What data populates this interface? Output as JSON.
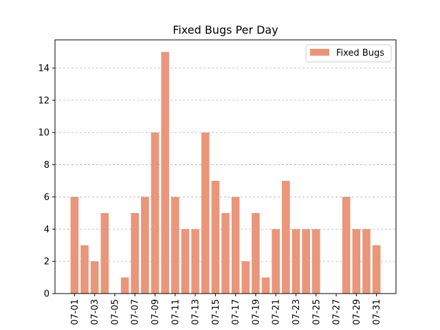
{
  "chart_data": {
    "type": "bar",
    "title": "Fixed Bugs Per Day",
    "xlabel": "",
    "ylabel": "",
    "categories": [
      "07-01",
      "07-02",
      "07-03",
      "07-04",
      "07-05",
      "07-06",
      "07-07",
      "07-08",
      "07-09",
      "07-10",
      "07-11",
      "07-12",
      "07-13",
      "07-14",
      "07-15",
      "07-16",
      "07-17",
      "07-18",
      "07-19",
      "07-20",
      "07-21",
      "07-22",
      "07-23",
      "07-24",
      "07-25",
      "07-26",
      "07-27",
      "07-28",
      "07-29",
      "07-30",
      "07-31"
    ],
    "x_tick_labels": [
      "07-01",
      "07-03",
      "07-05",
      "07-07",
      "07-09",
      "07-11",
      "07-13",
      "07-15",
      "07-17",
      "07-19",
      "07-21",
      "07-23",
      "07-25",
      "07-27",
      "07-29",
      "07-31"
    ],
    "series": [
      {
        "name": "Fixed Bugs",
        "values": [
          6,
          3,
          2,
          5,
          0,
          1,
          5,
          6,
          10,
          15,
          6,
          4,
          4,
          10,
          7,
          5,
          6,
          2,
          5,
          1,
          4,
          7,
          4,
          4,
          4,
          0,
          0,
          6,
          4,
          4,
          3
        ]
      }
    ],
    "ylim": [
      0,
      15.75
    ],
    "yticks": [
      0,
      2,
      4,
      6,
      8,
      10,
      12,
      14
    ],
    "grid": "y-dashed",
    "legend_position": "top-right",
    "colors": {
      "bar": "#e9967a",
      "grid": "#b0b0b0",
      "axis": "#000000"
    }
  }
}
